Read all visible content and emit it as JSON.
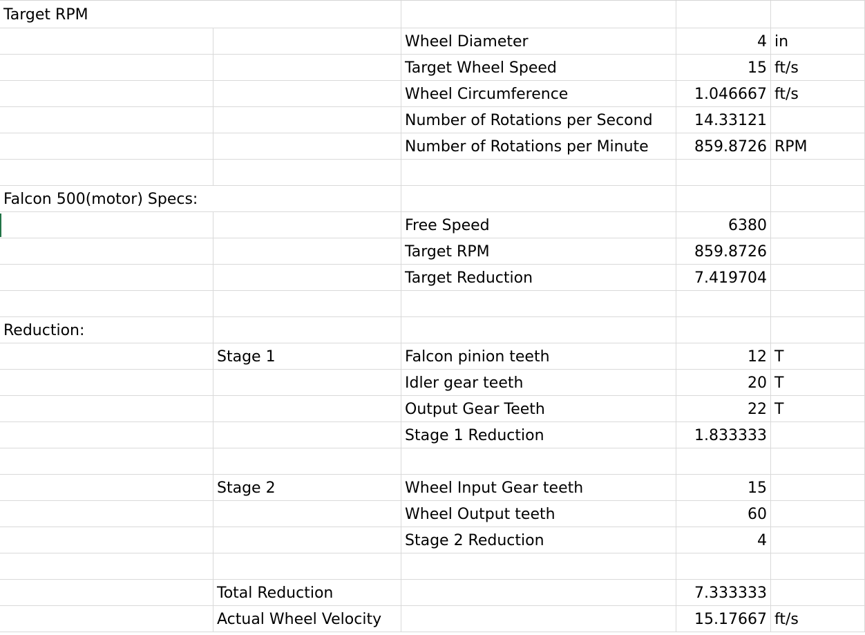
{
  "sheet": {
    "rows": [
      {
        "a": "Target RPM",
        "b": "",
        "c": "",
        "d": "",
        "e": ""
      },
      {
        "a": "",
        "b": "",
        "c": "Wheel Diameter",
        "d": "4",
        "e": "in"
      },
      {
        "a": "",
        "b": "",
        "c": "Target Wheel Speed",
        "d": "15",
        "e": "ft/s"
      },
      {
        "a": "",
        "b": "",
        "c": "Wheel Circumference",
        "d": "1.046667",
        "e": "ft/s"
      },
      {
        "a": "",
        "b": "",
        "c": "Number of Rotations per Second",
        "d": "14.33121",
        "e": ""
      },
      {
        "a": "",
        "b": "",
        "c": "Number of Rotations per Minute",
        "d": "859.8726",
        "e": "RPM"
      },
      {
        "a": "",
        "b": "",
        "c": "",
        "d": "",
        "e": ""
      },
      {
        "a": "Falcon 500(motor) Specs:",
        "b": "",
        "c": "",
        "d": "",
        "e": ""
      },
      {
        "a": "",
        "b": "",
        "c": "Free Speed",
        "d": "6380",
        "e": ""
      },
      {
        "a": "",
        "b": "",
        "c": "Target RPM",
        "d": "859.8726",
        "e": ""
      },
      {
        "a": "",
        "b": "",
        "c": "Target Reduction",
        "d": "7.419704",
        "e": ""
      },
      {
        "a": "",
        "b": "",
        "c": "",
        "d": "",
        "e": ""
      },
      {
        "a": "Reduction:",
        "b": "",
        "c": "",
        "d": "",
        "e": ""
      },
      {
        "a": "",
        "b": "Stage 1",
        "c": "Falcon pinion teeth",
        "d": "12",
        "e": "T"
      },
      {
        "a": "",
        "b": "",
        "c": "Idler gear teeth",
        "d": "20",
        "e": "T"
      },
      {
        "a": "",
        "b": "",
        "c": "Output Gear Teeth",
        "d": "22",
        "e": "T"
      },
      {
        "a": "",
        "b": "",
        "c": "Stage 1 Reduction",
        "d": "1.833333",
        "e": ""
      },
      {
        "a": "",
        "b": "",
        "c": "",
        "d": "",
        "e": ""
      },
      {
        "a": "",
        "b": "Stage 2",
        "c": "Wheel Input Gear teeth",
        "d": "15",
        "e": ""
      },
      {
        "a": "",
        "b": "",
        "c": "Wheel Output teeth",
        "d": "60",
        "e": ""
      },
      {
        "a": "",
        "b": "",
        "c": "Stage 2 Reduction",
        "d": "4",
        "e": ""
      },
      {
        "a": "",
        "b": "",
        "c": "",
        "d": "",
        "e": ""
      },
      {
        "a": "",
        "b": "Total Reduction",
        "c": "",
        "d": "7.333333",
        "e": ""
      },
      {
        "a": "",
        "b": "Actual Wheel Velocity",
        "c": "",
        "d": "15.17667",
        "e": "ft/s"
      }
    ]
  }
}
